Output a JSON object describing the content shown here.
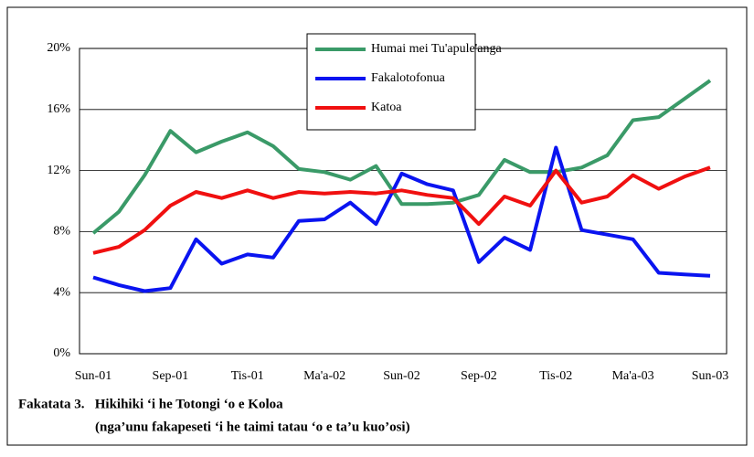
{
  "chart_data": {
    "type": "line",
    "categories": [
      "Sun-01",
      null,
      null,
      "Sep-01",
      null,
      null,
      "Tis-01",
      null,
      null,
      "Ma'a-02",
      null,
      null,
      "Sun-02",
      null,
      null,
      "Sep-02",
      null,
      null,
      "Tis-02",
      null,
      null,
      "Ma'a-03",
      null,
      null,
      "Sun-03"
    ],
    "series": [
      {
        "name": "Humai mei Tu'apule'anga",
        "color": "#3a9a68",
        "values": [
          7.9,
          9.3,
          11.7,
          14.6,
          13.2,
          13.9,
          14.5,
          13.6,
          12.1,
          11.9,
          11.4,
          12.3,
          9.8,
          9.8,
          9.9,
          10.4,
          12.7,
          11.9,
          11.9,
          12.2,
          13.0,
          15.3,
          15.5,
          16.7,
          17.9
        ]
      },
      {
        "name": "Fakalotofonua",
        "color": "#0a14f0",
        "values": [
          5.0,
          4.5,
          4.1,
          4.3,
          7.5,
          5.9,
          6.5,
          6.3,
          8.7,
          8.8,
          9.9,
          8.5,
          11.8,
          11.1,
          10.7,
          6.0,
          7.6,
          6.8,
          13.5,
          8.1,
          7.8,
          7.5,
          5.3,
          5.2,
          5.1
        ]
      },
      {
        "name": "Katoa",
        "color": "#f01010",
        "values": [
          6.6,
          7.0,
          8.1,
          9.7,
          10.6,
          10.2,
          10.7,
          10.2,
          10.6,
          10.5,
          10.6,
          10.5,
          10.7,
          10.4,
          10.2,
          8.5,
          10.3,
          9.7,
          12.0,
          9.9,
          10.3,
          11.7,
          10.8,
          11.6,
          12.2
        ]
      }
    ],
    "ylim": [
      0,
      20
    ],
    "yticks": [
      {
        "value": 0,
        "label": "0%"
      },
      {
        "value": 4,
        "label": "4%"
      },
      {
        "value": 8,
        "label": "8%"
      },
      {
        "value": 12,
        "label": "12%"
      },
      {
        "value": 16,
        "label": "16%"
      },
      {
        "value": 20,
        "label": "20%"
      }
    ],
    "grid": true,
    "caption": [
      "Fakatata 3.   Hikihiki ‘i he Totongi ‘o e Koloa",
      "(nga’unu fakapeseti ‘i he taimi tatau ‘o e ta’u kuo’osi)"
    ]
  }
}
